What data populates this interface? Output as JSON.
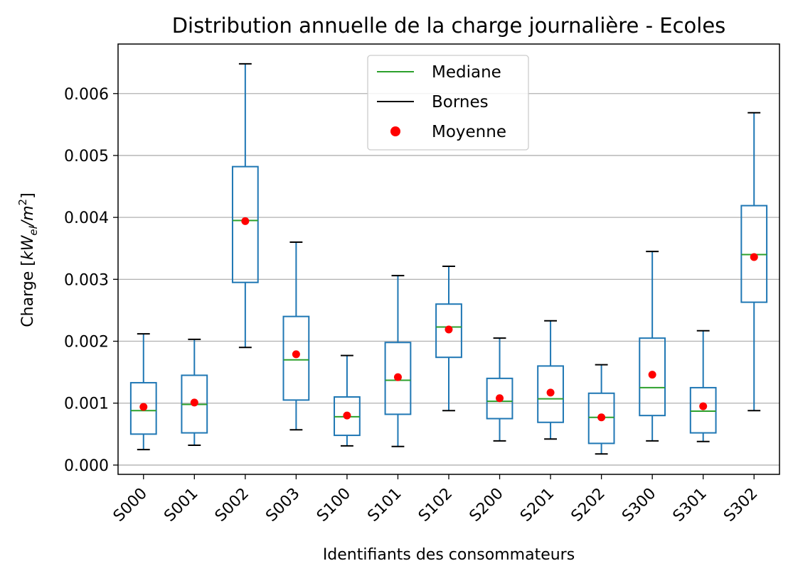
{
  "chart_data": {
    "type": "box",
    "title": "Distribution annuelle de la charge journalière - Ecoles",
    "xlabel": "Identifiants des consommateurs",
    "ylabel": "Charge [kW_el/m^2]",
    "ylabel_parts": {
      "base": "Charge [",
      "k": "kW",
      "sub": "el",
      "slash": "/m",
      "sup": "2",
      "close": "]"
    },
    "ylim": [
      -0.00015,
      0.0068
    ],
    "yticks": [
      0.0,
      0.001,
      0.002,
      0.003,
      0.004,
      0.005,
      0.006
    ],
    "ytick_labels": [
      "0.000",
      "0.001",
      "0.002",
      "0.003",
      "0.004",
      "0.005",
      "0.006"
    ],
    "grid": "y",
    "legend": {
      "placement": "top-center",
      "entries": [
        {
          "label": "Mediane",
          "kind": "line",
          "color": "#2ca02c"
        },
        {
          "label": "Bornes",
          "kind": "line",
          "color": "#000000"
        },
        {
          "label": "Moyenne",
          "kind": "dot",
          "color": "#ff0000"
        }
      ]
    },
    "colors": {
      "box": "#1f77b4",
      "median": "#2ca02c",
      "whisker_cap": "#000000",
      "mean": "#ff0000",
      "grid": "#b0b0b0"
    },
    "categories": [
      "S000",
      "S001",
      "S002",
      "S003",
      "S100",
      "S101",
      "S102",
      "S200",
      "S201",
      "S202",
      "S300",
      "S301",
      "S302"
    ],
    "boxes": [
      {
        "id": "S000",
        "whislo": 0.00025,
        "q1": 0.0005,
        "med": 0.00088,
        "q3": 0.00133,
        "whishi": 0.00212,
        "mean": 0.00094
      },
      {
        "id": "S001",
        "whislo": 0.00032,
        "q1": 0.00052,
        "med": 0.00098,
        "q3": 0.00145,
        "whishi": 0.00203,
        "mean": 0.00101
      },
      {
        "id": "S002",
        "whislo": 0.0019,
        "q1": 0.00295,
        "med": 0.00395,
        "q3": 0.00482,
        "whishi": 0.00648,
        "mean": 0.00394
      },
      {
        "id": "S003",
        "whislo": 0.00057,
        "q1": 0.00105,
        "med": 0.0017,
        "q3": 0.0024,
        "whishi": 0.0036,
        "mean": 0.00179
      },
      {
        "id": "S100",
        "whislo": 0.00031,
        "q1": 0.00048,
        "med": 0.00078,
        "q3": 0.0011,
        "whishi": 0.00177,
        "mean": 0.0008
      },
      {
        "id": "S101",
        "whislo": 0.0003,
        "q1": 0.00082,
        "med": 0.00137,
        "q3": 0.00198,
        "whishi": 0.00306,
        "mean": 0.00142
      },
      {
        "id": "S102",
        "whislo": 0.00088,
        "q1": 0.00174,
        "med": 0.00223,
        "q3": 0.0026,
        "whishi": 0.00321,
        "mean": 0.00219
      },
      {
        "id": "S200",
        "whislo": 0.00039,
        "q1": 0.00075,
        "med": 0.00103,
        "q3": 0.0014,
        "whishi": 0.00205,
        "mean": 0.00108
      },
      {
        "id": "S201",
        "whislo": 0.00042,
        "q1": 0.00069,
        "med": 0.00107,
        "q3": 0.0016,
        "whishi": 0.00233,
        "mean": 0.00117
      },
      {
        "id": "S202",
        "whislo": 0.00018,
        "q1": 0.00035,
        "med": 0.00077,
        "q3": 0.00116,
        "whishi": 0.00162,
        "mean": 0.00077
      },
      {
        "id": "S300",
        "whislo": 0.00039,
        "q1": 0.0008,
        "med": 0.00125,
        "q3": 0.00205,
        "whishi": 0.00345,
        "mean": 0.00146
      },
      {
        "id": "S301",
        "whislo": 0.00038,
        "q1": 0.00052,
        "med": 0.00087,
        "q3": 0.00125,
        "whishi": 0.00217,
        "mean": 0.00095
      },
      {
        "id": "S302",
        "whislo": 0.00088,
        "q1": 0.00263,
        "med": 0.0034,
        "q3": 0.00419,
        "whishi": 0.00569,
        "mean": 0.00336
      }
    ]
  }
}
